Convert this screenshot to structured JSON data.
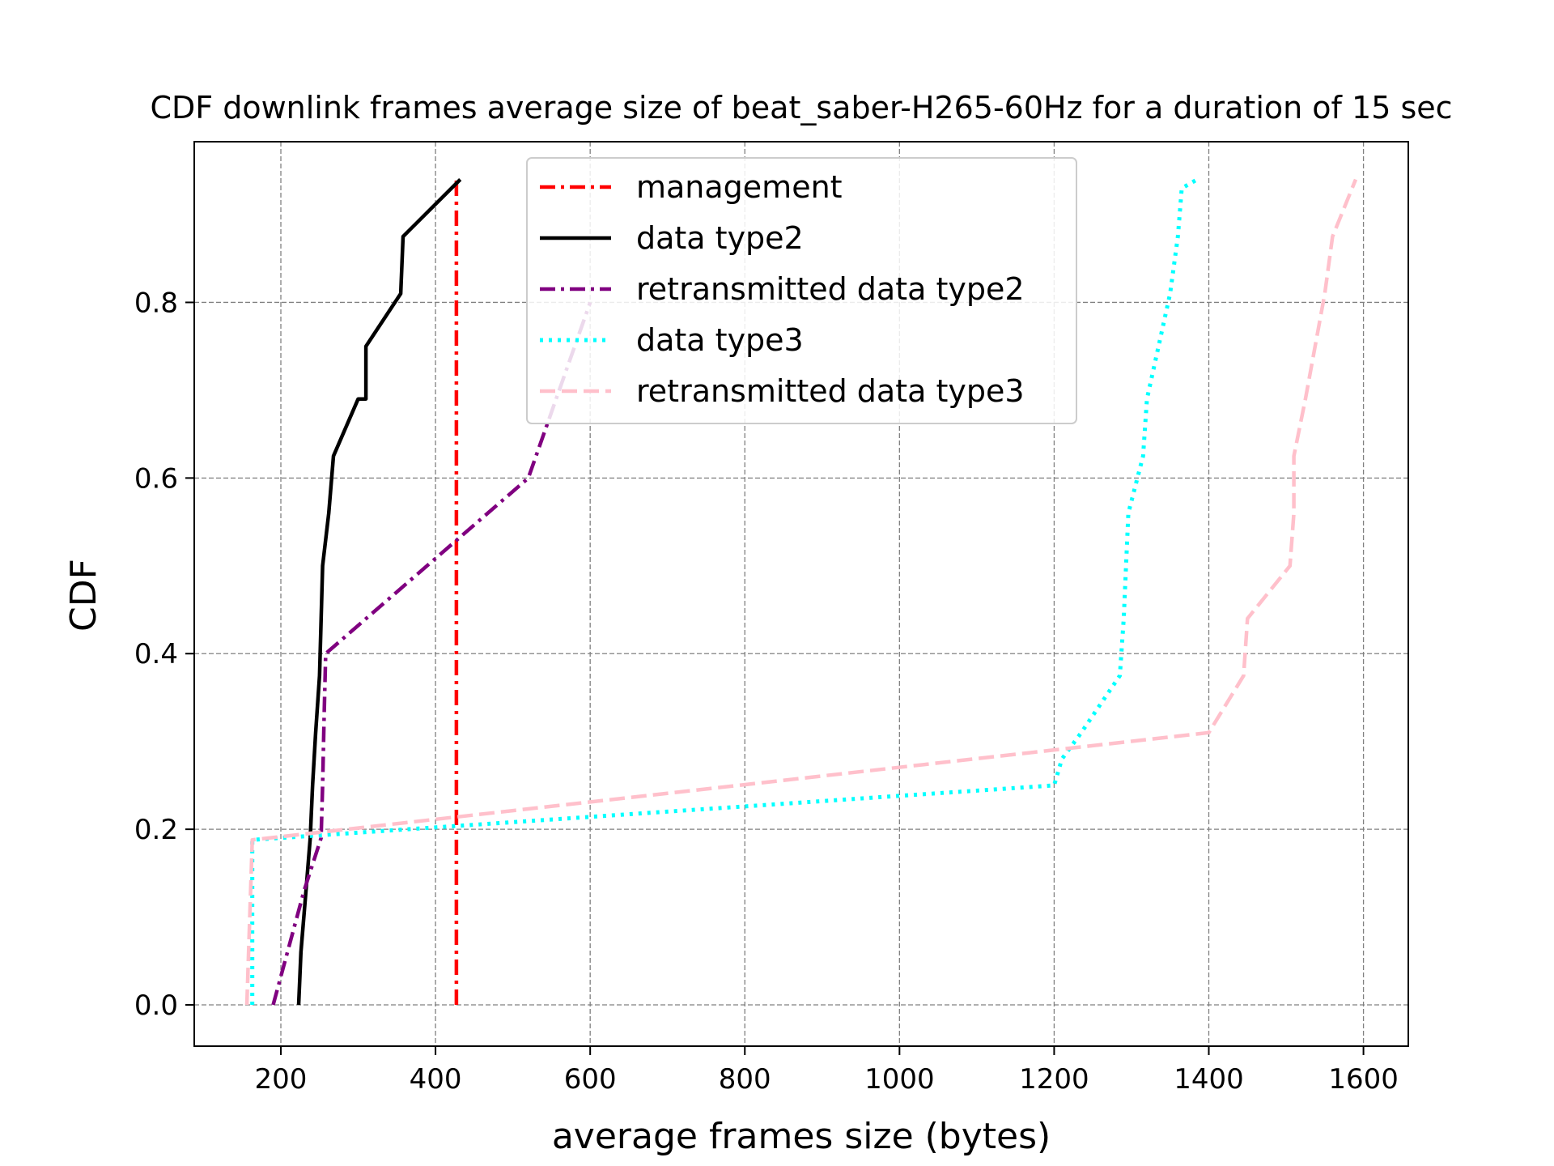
{
  "chart_data": {
    "type": "line",
    "title": "CDF downlink frames average size of beat_saber-H265-60Hz for a duration of 15 sec",
    "xlabel": "average frames size (bytes)",
    "ylabel": "CDF",
    "xlim": [
      88,
      1658
    ],
    "ylim": [
      -0.047,
      0.983
    ],
    "xticks": [
      200,
      400,
      600,
      800,
      1000,
      1200,
      1400,
      1600
    ],
    "yticks": [
      0.0,
      0.2,
      0.4,
      0.6,
      0.8
    ],
    "xtick_labels": [
      "200",
      "400",
      "600",
      "800",
      "1000",
      "1200",
      "1400",
      "1600"
    ],
    "ytick_labels": [
      "0.0",
      "0.2",
      "0.4",
      "0.6",
      "0.8"
    ],
    "grid": true,
    "legend_position": "top-center",
    "series": [
      {
        "name": "management",
        "color": "#ff0000",
        "style": "dashdot",
        "x": [
          427,
          427
        ],
        "y": [
          0.0,
          0.94
        ]
      },
      {
        "name": "data type2",
        "color": "#000000",
        "style": "solid",
        "x": [
          223,
          226,
          232,
          238,
          241,
          245,
          250,
          254,
          262,
          268,
          300,
          310,
          310,
          355,
          358,
          432
        ],
        "y": [
          0.0,
          0.06,
          0.125,
          0.19,
          0.25,
          0.31,
          0.375,
          0.5,
          0.56,
          0.625,
          0.69,
          0.69,
          0.75,
          0.81,
          0.875,
          0.94
        ]
      },
      {
        "name": "retransmitted data type2",
        "color": "#800080",
        "style": "dashdot",
        "x": [
          190,
          230,
          252,
          254,
          256,
          258,
          520,
          540,
          600
        ],
        "y": [
          0.0,
          0.13,
          0.19,
          0.25,
          0.33,
          0.4,
          0.6,
          0.65,
          0.8
        ]
      },
      {
        "name": "data type3",
        "color": "#00ffff",
        "style": "dotted",
        "x": [
          163,
          163,
          1200,
          1210,
          1235,
          1285,
          1290,
          1296,
          1315,
          1320,
          1335,
          1350,
          1360,
          1365,
          1385
        ],
        "y": [
          0.0,
          0.188,
          0.25,
          0.28,
          0.31,
          0.375,
          0.44,
          0.56,
          0.625,
          0.69,
          0.75,
          0.81,
          0.875,
          0.93,
          0.94
        ]
      },
      {
        "name": "retransmitted data type3",
        "color": "#ffc0cb",
        "style": "dashed",
        "x": [
          156,
          156,
          163,
          1400,
          1445,
          1450,
          1505,
          1510,
          1510,
          1525,
          1550,
          1560,
          1590
        ],
        "y": [
          0.0,
          0.0,
          0.188,
          0.31,
          0.375,
          0.44,
          0.5,
          0.56,
          0.625,
          0.69,
          0.81,
          0.875,
          0.94
        ]
      }
    ]
  }
}
